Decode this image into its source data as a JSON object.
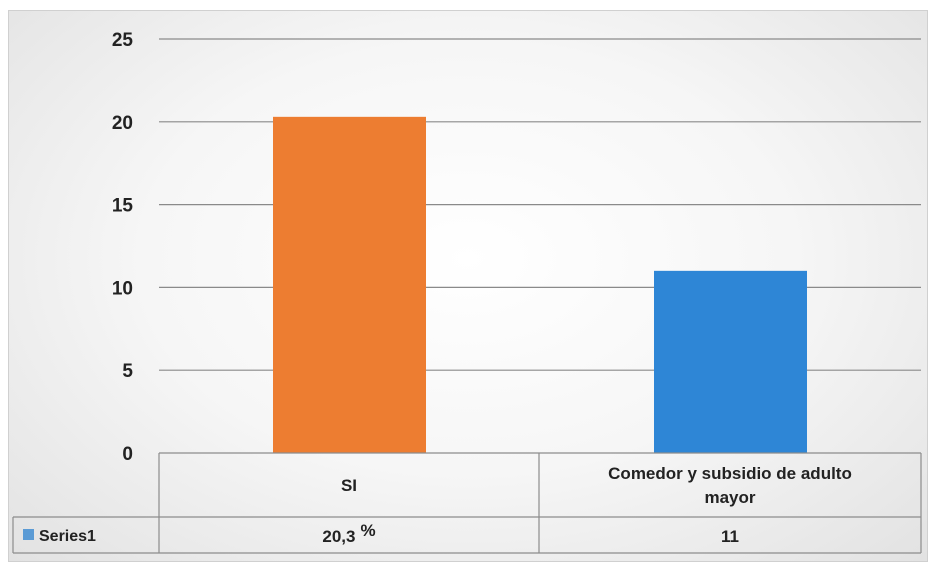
{
  "chart_data": {
    "type": "bar",
    "categories": [
      "SI",
      "Comedor y subsidio de adulto mayor"
    ],
    "category_label_lines": [
      [
        "SI"
      ],
      [
        "Comedor y subsidio de adulto",
        "mayor"
      ]
    ],
    "series": [
      {
        "name": "Series1",
        "values": [
          20.3,
          11
        ],
        "bar_colors": [
          "#ED7D31",
          "#2E86D6"
        ],
        "legend_color": "#5B9BD5"
      }
    ],
    "table_values": [
      "20,3",
      "11"
    ],
    "table_value_suffix": [
      "%",
      ""
    ],
    "ylim": [
      0,
      25
    ],
    "yticks": [
      0,
      5,
      10,
      15,
      20,
      25
    ],
    "grid": true,
    "data_table": true
  }
}
